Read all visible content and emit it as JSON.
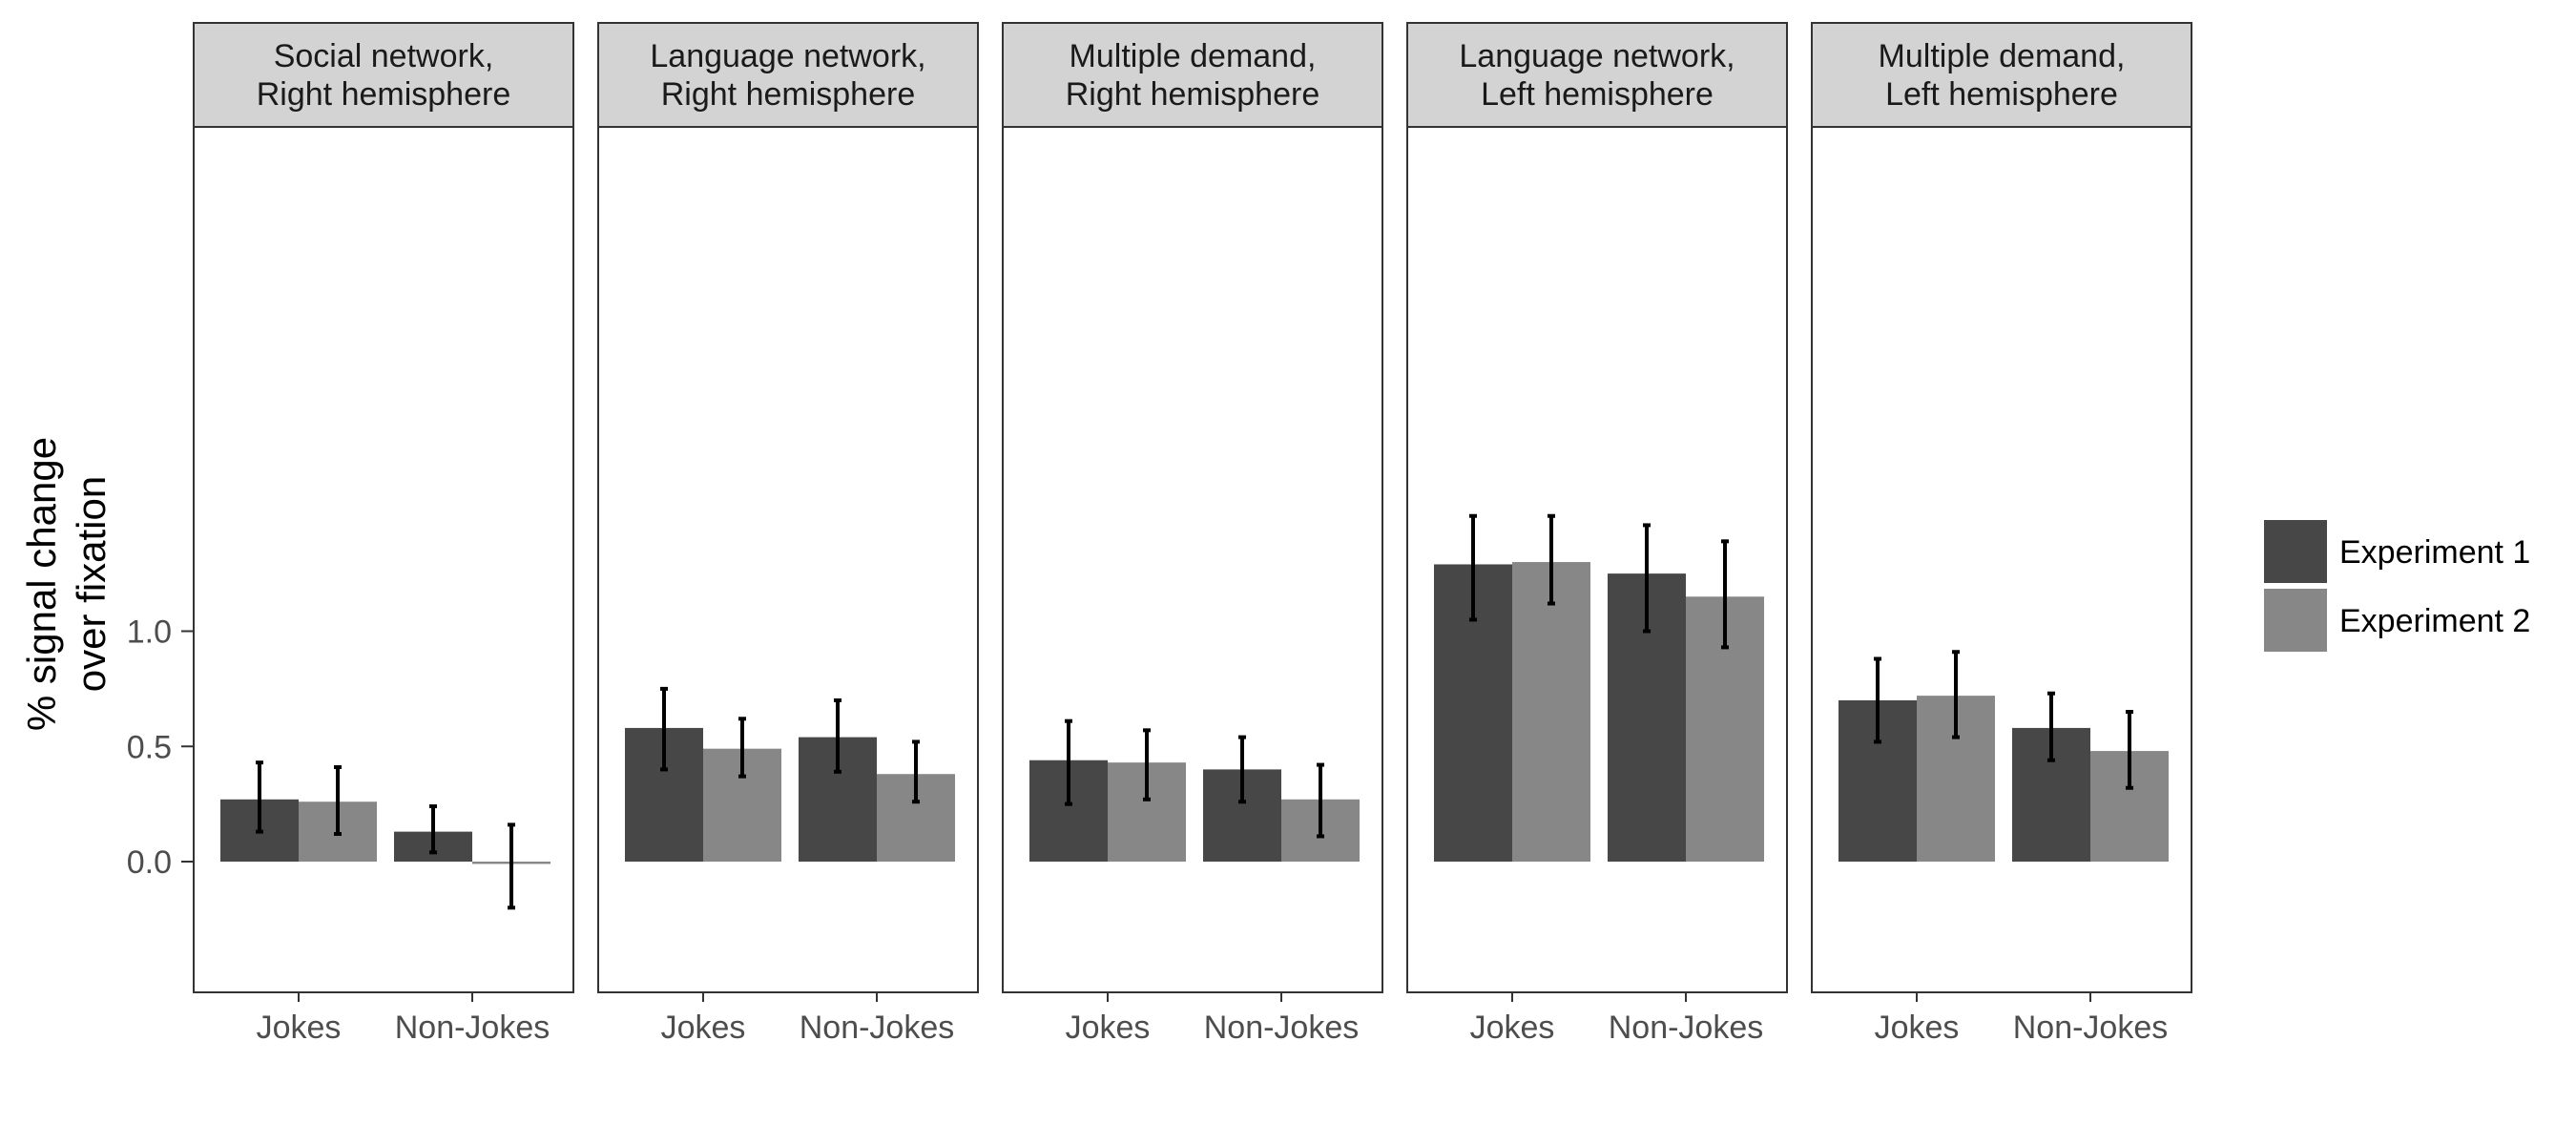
{
  "chart_data": {
    "type": "bar",
    "ylabel": [
      "% signal change",
      "over fixation"
    ],
    "y_ticks": [
      0.0,
      0.5,
      1.0
    ],
    "ylim": [
      -0.58,
      3.6
    ],
    "categories": [
      "Jokes",
      "Non-Jokes"
    ],
    "legend": {
      "position": "right"
    },
    "series_names": [
      "Experiment 1",
      "Experiment 2"
    ],
    "colors": {
      "Experiment 1": "#474747",
      "Experiment 2": "#878787",
      "strip": "#d3d3d3",
      "panel_border": "#333333"
    },
    "panels": [
      {
        "title": [
          "Social network,",
          "Right hemisphere"
        ],
        "values": {
          "Experiment 1": [
            0.27,
            0.13
          ],
          "Experiment 2": [
            0.26,
            -0.01
          ]
        },
        "errors": {
          "Experiment 1": [
            [
              0.13,
              0.43
            ],
            [
              0.04,
              0.24
            ]
          ],
          "Experiment 2": [
            [
              0.12,
              0.41
            ],
            [
              -0.2,
              0.16
            ]
          ]
        }
      },
      {
        "title": [
          "Language network,",
          "Right hemisphere"
        ],
        "values": {
          "Experiment 1": [
            0.58,
            0.54
          ],
          "Experiment 2": [
            0.49,
            0.38
          ]
        },
        "errors": {
          "Experiment 1": [
            [
              0.4,
              0.75
            ],
            [
              0.39,
              0.7
            ]
          ],
          "Experiment 2": [
            [
              0.37,
              0.62
            ],
            [
              0.26,
              0.52
            ]
          ]
        }
      },
      {
        "title": [
          "Multiple demand,",
          "Right hemisphere"
        ],
        "values": {
          "Experiment 1": [
            0.44,
            0.4
          ],
          "Experiment 2": [
            0.43,
            0.27
          ]
        },
        "errors": {
          "Experiment 1": [
            [
              0.25,
              0.61
            ],
            [
              0.26,
              0.54
            ]
          ],
          "Experiment 2": [
            [
              0.27,
              0.57
            ],
            [
              0.11,
              0.42
            ]
          ]
        }
      },
      {
        "title": [
          "Language network,",
          "Left hemisphere"
        ],
        "values": {
          "Experiment 1": [
            1.29,
            1.25
          ],
          "Experiment 2": [
            1.3,
            1.15
          ]
        },
        "errors": {
          "Experiment 1": [
            [
              1.05,
              1.5
            ],
            [
              1.0,
              1.46
            ]
          ],
          "Experiment 2": [
            [
              1.12,
              1.5
            ],
            [
              0.93,
              1.39
            ]
          ]
        }
      },
      {
        "title": [
          "Multiple demand,",
          "Left hemisphere"
        ],
        "values": {
          "Experiment 1": [
            0.7,
            0.58
          ],
          "Experiment 2": [
            0.72,
            0.48
          ]
        },
        "errors": {
          "Experiment 1": [
            [
              0.52,
              0.88
            ],
            [
              0.44,
              0.73
            ]
          ],
          "Experiment 2": [
            [
              0.54,
              0.91
            ],
            [
              0.32,
              0.65
            ]
          ]
        }
      }
    ]
  }
}
